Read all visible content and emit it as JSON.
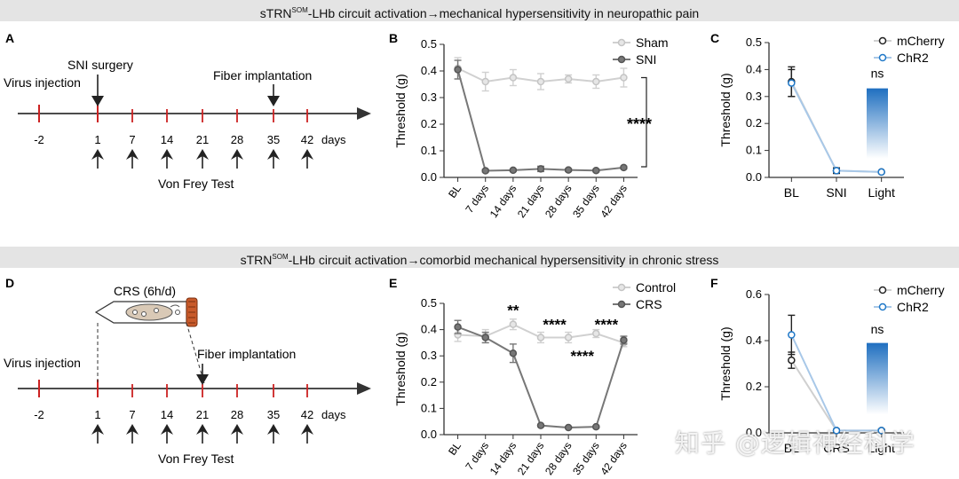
{
  "headers": {
    "top": {
      "pre": "sTRN",
      "sup": "SOM",
      "post": "-LHb circuit activation→mechanical hypersensitivity in neuropathic pain"
    },
    "bottom": {
      "pre": "sTRN",
      "sup": "SOM",
      "post": "-LHb circuit activation→comorbid mechanical hypersensitivity in chronic stress"
    }
  },
  "panel_letters": {
    "A": "A",
    "B": "B",
    "C": "C",
    "D": "D",
    "E": "E",
    "F": "F"
  },
  "timeline_A": {
    "ticks": [
      "-2",
      "1",
      "7",
      "14",
      "21",
      "28",
      "35",
      "42"
    ],
    "unit": "days",
    "virus_injection": "Virus injection",
    "surgery": "SNI surgery",
    "fiber": "Fiber implantation",
    "test": "Von Frey Test"
  },
  "timeline_D": {
    "ticks": [
      "-2",
      "1",
      "7",
      "14",
      "21",
      "28",
      "35",
      "42"
    ],
    "unit": "days",
    "virus_injection": "Virus injection",
    "crs": "CRS (6h/d)",
    "fiber": "Fiber implantation",
    "test": "Von Frey Test"
  },
  "colors": {
    "dark": "#777777",
    "light": "#d0d0d0",
    "blue": "#1f78c8",
    "blue_light": "#a8c8e8",
    "red": "#cc2222",
    "title_bg": "#e4e4e4"
  },
  "chart_data": [
    {
      "panel": "B",
      "type": "line",
      "ylabel": "Threshold (g)",
      "ylim": [
        0,
        0.5
      ],
      "yticks": [
        "0.0",
        "0.1",
        "0.2",
        "0.3",
        "0.4",
        "0.5"
      ],
      "categories": [
        "BL",
        "7 days",
        "14 days",
        "21 days",
        "28 days",
        "35 days",
        "42 days"
      ],
      "series": [
        {
          "name": "Sham",
          "values": [
            0.41,
            0.36,
            0.375,
            0.36,
            0.37,
            0.36,
            0.375
          ],
          "errors": [
            0.04,
            0.035,
            0.03,
            0.03,
            0.015,
            0.025,
            0.035
          ]
        },
        {
          "name": "SNI",
          "values": [
            0.405,
            0.025,
            0.027,
            0.032,
            0.028,
            0.026,
            0.037
          ],
          "errors": [
            0.035,
            0.005,
            0.005,
            0.01,
            0.005,
            0.005,
            0.005
          ]
        }
      ],
      "annotation": "****"
    },
    {
      "panel": "C",
      "type": "line",
      "ylabel": "Threshold (g)",
      "ylim": [
        0,
        0.5
      ],
      "yticks": [
        "0.0",
        "0.1",
        "0.2",
        "0.3",
        "0.4",
        "0.5"
      ],
      "categories": [
        "BL",
        "SNI",
        "Light"
      ],
      "series": [
        {
          "name": "mCherry",
          "values": [
            0.355,
            0.025,
            0.02
          ],
          "errors": [
            0.055,
            0.01,
            0.0
          ]
        },
        {
          "name": "ChR2",
          "values": [
            0.35,
            0.025,
            0.02
          ],
          "errors": [
            0.05,
            0.01,
            0.0
          ]
        }
      ],
      "annotation": "ns"
    },
    {
      "panel": "E",
      "type": "line",
      "ylabel": "Threshold (g)",
      "ylim": [
        0,
        0.5
      ],
      "yticks": [
        "0.0",
        "0.1",
        "0.2",
        "0.3",
        "0.4",
        "0.5"
      ],
      "categories": [
        "BL",
        "7 days",
        "14 days",
        "21 days",
        "28 days",
        "35 days",
        "42 days"
      ],
      "series": [
        {
          "name": "Control",
          "values": [
            0.38,
            0.375,
            0.42,
            0.37,
            0.37,
            0.385,
            0.35
          ],
          "errors": [
            0.025,
            0.025,
            0.02,
            0.02,
            0.02,
            0.015,
            0.015
          ]
        },
        {
          "name": "CRS",
          "values": [
            0.41,
            0.37,
            0.31,
            0.035,
            0.027,
            0.03,
            0.36
          ],
          "errors": [
            0.025,
            0.02,
            0.035,
            0.003,
            0.003,
            0.003,
            0.015
          ]
        }
      ],
      "annotations": [
        "**",
        "****",
        "****",
        "****"
      ]
    },
    {
      "panel": "F",
      "type": "line",
      "ylabel": "Threshold (g)",
      "ylim": [
        0,
        0.6
      ],
      "yticks": [
        "0.0",
        "0.2",
        "0.4",
        "0.6"
      ],
      "categories": [
        "BL",
        "CRS",
        "Light"
      ],
      "series": [
        {
          "name": "mCherry",
          "values": [
            0.315,
            0.01,
            0.01
          ],
          "errors": [
            0.035,
            0.005,
            0.005
          ]
        },
        {
          "name": "ChR2",
          "values": [
            0.425,
            0.01,
            0.01
          ],
          "errors": [
            0.085,
            0.005,
            0.005
          ]
        }
      ],
      "annotation": "ns"
    }
  ],
  "watermark": "知乎 @逻辑神经科学"
}
